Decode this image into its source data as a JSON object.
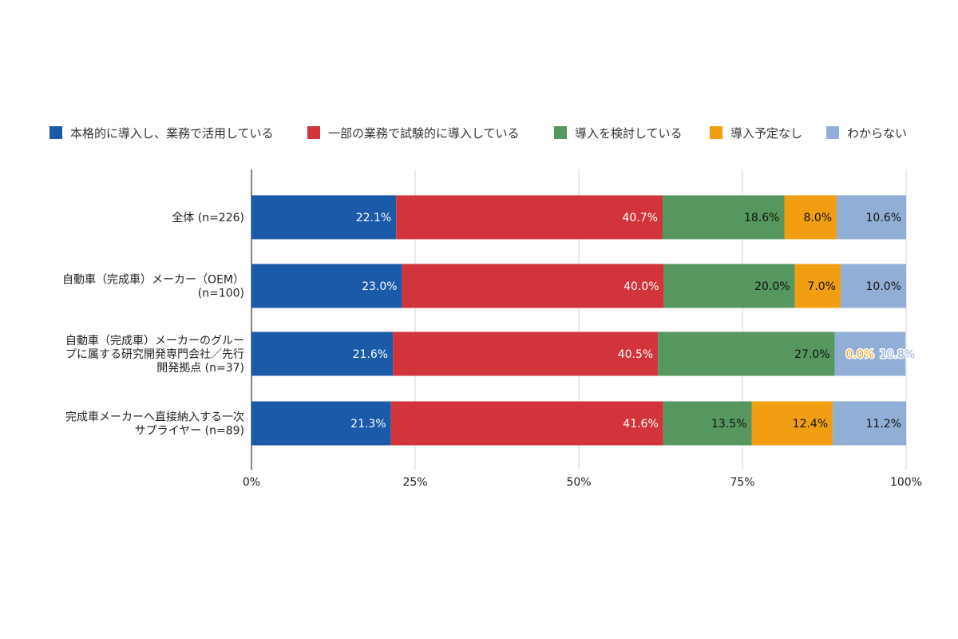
{
  "chart_data": {
    "type": "bar",
    "orientation": "horizontal",
    "stacked": "percent",
    "legend_position": "top",
    "grid": true,
    "xlim": [
      0,
      100
    ],
    "x_ticks": [
      "0%",
      "25%",
      "50%",
      "75%",
      "100%"
    ],
    "categories": [
      [
        "全体 (n=226)"
      ],
      [
        "自動車（完成車）メーカー（OEM）",
        "(n=100)"
      ],
      [
        "自動車（完成車）メーカーのグルー",
        "プに属する研究開発専門会社／先行",
        "開発拠点 (n=37)"
      ],
      [
        "完成車メーカーへ直接納入する一次",
        "サプライヤー (n=89)"
      ]
    ],
    "series": [
      {
        "name": "本格的に導入し、業務で活用している",
        "color": "#1a5aa8",
        "label_color": "#ffffff",
        "values": [
          22.1,
          23.0,
          21.6,
          21.3
        ]
      },
      {
        "name": "一部の業務で試験的に導入している",
        "color": "#d1343b",
        "label_color": "#ffffff",
        "values": [
          40.7,
          40.0,
          40.5,
          41.6
        ]
      },
      {
        "name": "導入を検討している",
        "color": "#55975e",
        "label_color": "#111111",
        "values": [
          18.6,
          20.0,
          27.0,
          13.5
        ]
      },
      {
        "name": "導入予定なし",
        "color": "#f29e13",
        "label_color": "#111111",
        "values": [
          8.0,
          7.0,
          0.0,
          12.4
        ]
      },
      {
        "name": "わからない",
        "color": "#91aed6",
        "label_color": "#111111",
        "values": [
          10.6,
          10.0,
          10.8,
          11.2
        ]
      }
    ]
  }
}
